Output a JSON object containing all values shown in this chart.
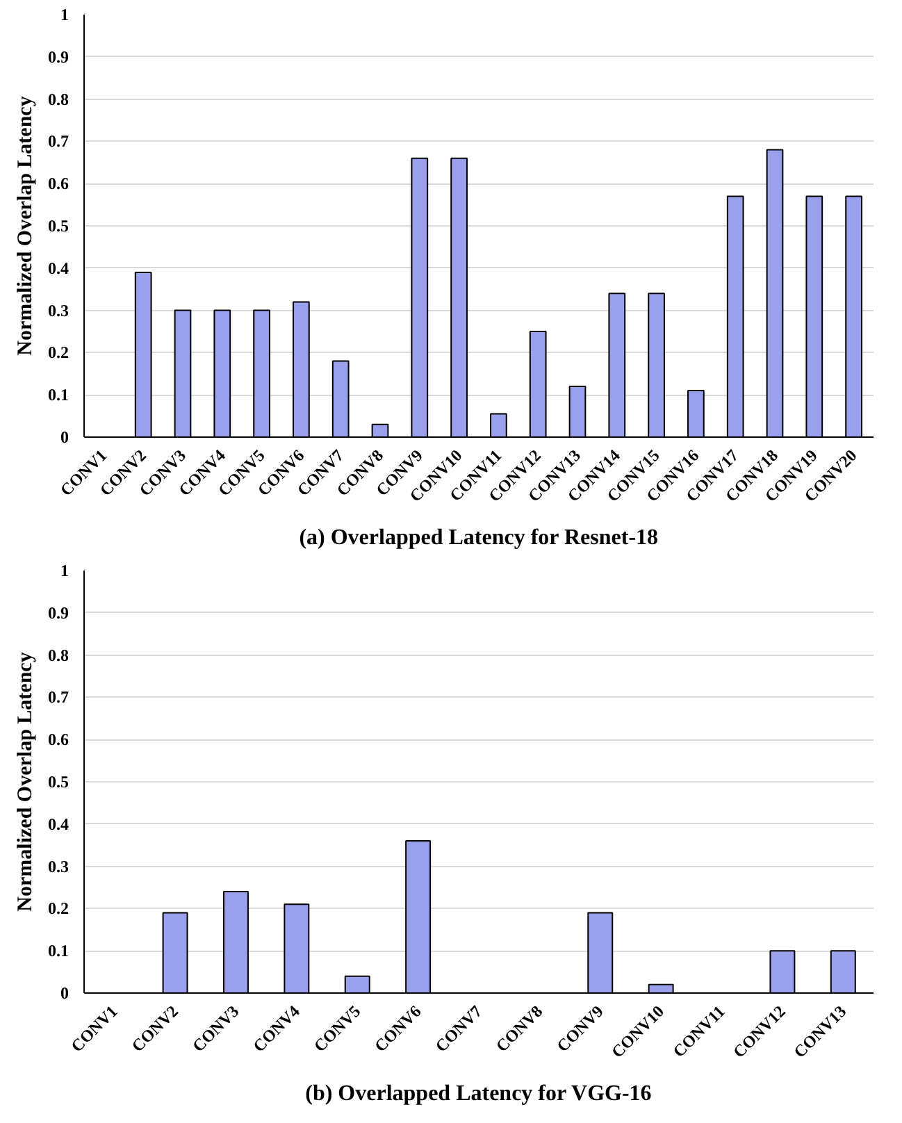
{
  "chart_data": [
    {
      "type": "bar",
      "title": "(a) Overlapped Latency for Resnet-18",
      "ylabel": "Normalized Overlap Latency",
      "categories": [
        "CONV1",
        "CONV2",
        "CONV3",
        "CONV4",
        "CONV5",
        "CONV6",
        "CONV7",
        "CONV8",
        "CONV9",
        "CONV10",
        "CONV11",
        "CONV12",
        "CONV13",
        "CONV14",
        "CONV15",
        "CONV16",
        "CONV17",
        "CONV18",
        "CONV19",
        "CONV20"
      ],
      "values": [
        0,
        0.39,
        0.3,
        0.3,
        0.3,
        0.32,
        0.18,
        0.03,
        0.66,
        0.66,
        0.055,
        0.25,
        0.12,
        0.34,
        0.34,
        0.11,
        0.57,
        0.68,
        0.57,
        0.57
      ],
      "color": "#9aa0ec",
      "ylim": [
        0,
        1
      ],
      "yticks": [
        0,
        0.1,
        0.2,
        0.3,
        0.4,
        0.5,
        0.6,
        0.7,
        0.8,
        0.9,
        1
      ],
      "grid": "y"
    },
    {
      "type": "bar",
      "title": "(b) Overlapped Latency for VGG-16",
      "ylabel": "Normalized Overlap Latency",
      "categories": [
        "CONV1",
        "CONV2",
        "CONV3",
        "CONV4",
        "CONV5",
        "CONV6",
        "CONV7",
        "CONV8",
        "CONV9",
        "CONV10",
        "CONV11",
        "CONV12",
        "CONV13"
      ],
      "values": [
        0,
        0.19,
        0.24,
        0.21,
        0.04,
        0.36,
        0,
        0,
        0.19,
        0.02,
        0,
        0.1,
        0.1
      ],
      "color": "#9aa0ec",
      "ylim": [
        0,
        1
      ],
      "yticks": [
        0,
        0.1,
        0.2,
        0.3,
        0.4,
        0.5,
        0.6,
        0.7,
        0.8,
        0.9,
        1
      ],
      "grid": "y"
    }
  ]
}
